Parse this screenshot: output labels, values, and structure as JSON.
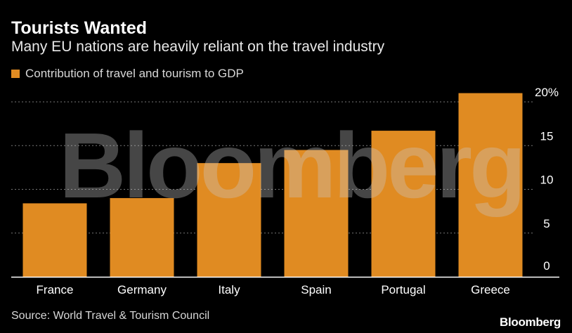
{
  "header": {
    "title": "Tourists Wanted",
    "subtitle": "Many EU nations are heavily reliant on the travel industry"
  },
  "legend": {
    "label": "Contribution of travel and tourism to GDP"
  },
  "footer": {
    "source": "Source: World Travel & Tourism Council",
    "brand": "Bloomberg"
  },
  "watermark": "Bloomberg",
  "colors": {
    "bar": "#e08b22",
    "background": "#000000",
    "grid": "#777777"
  },
  "chart_data": {
    "type": "bar",
    "categories": [
      "France",
      "Germany",
      "Italy",
      "Spain",
      "Portugal",
      "Greece"
    ],
    "values": [
      8.4,
      9.0,
      13.0,
      14.5,
      16.7,
      21.0
    ],
    "title": "Tourists Wanted",
    "subtitle": "Many EU nations are heavily reliant on the travel industry",
    "legend": [
      "Contribution of travel and tourism to GDP"
    ],
    "legend_position": "top-left",
    "ylim": [
      0,
      20
    ],
    "yticks": [
      0,
      5,
      10,
      15,
      20
    ],
    "ytick_labels": [
      "0",
      "5",
      "10",
      "15",
      "20%"
    ],
    "y_axis_position": "right",
    "grid": true
  }
}
